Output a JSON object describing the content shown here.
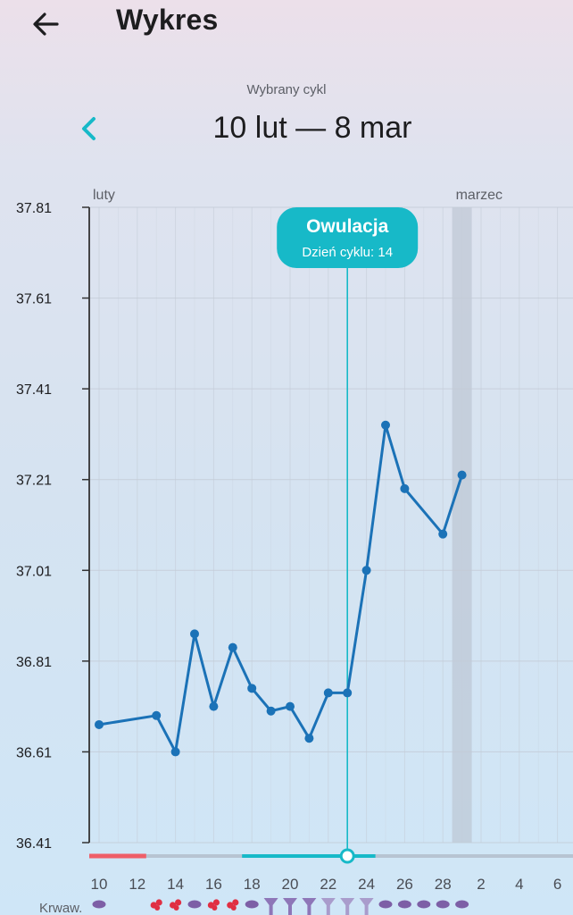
{
  "header": {
    "title": "Wykres",
    "back_icon": "arrow-left-icon"
  },
  "cycle": {
    "caption": "Wybrany cykl",
    "range": "10 lut — 8 mar",
    "prev_icon": "chevron-left-icon"
  },
  "colors": {
    "line": "#1b72b7",
    "ovulation": "#17b9c8",
    "period": "#ef5e68",
    "bleeding_icon": "#7d5fa6",
    "blood_drop": "#e02f43",
    "grid": "#c3cbd6",
    "axis": "#333333"
  },
  "chart_data": {
    "type": "line",
    "y_ticks": [
      "37.81",
      "37.61",
      "37.41",
      "37.21",
      "37.01",
      "36.81",
      "36.61",
      "36.41"
    ],
    "ylim": [
      36.41,
      37.81
    ],
    "month_labels": [
      {
        "label": "luty",
        "day_index": 0
      },
      {
        "label": "marzec",
        "day_index": 19
      }
    ],
    "day_labels": [
      {
        "label": "10",
        "day_index": 0
      },
      {
        "label": "12",
        "day_index": 2
      },
      {
        "label": "14",
        "day_index": 4
      },
      {
        "label": "16",
        "day_index": 6
      },
      {
        "label": "18",
        "day_index": 8
      },
      {
        "label": "20",
        "day_index": 10
      },
      {
        "label": "22",
        "day_index": 12
      },
      {
        "label": "24",
        "day_index": 14
      },
      {
        "label": "26",
        "day_index": 16
      },
      {
        "label": "28",
        "day_index": 18
      },
      {
        "label": "2",
        "day_index": 20
      },
      {
        "label": "4",
        "day_index": 22
      },
      {
        "label": "6",
        "day_index": 24
      }
    ],
    "highlight_day_index": 19,
    "points": [
      {
        "day_index": 0,
        "value": 36.67
      },
      {
        "day_index": 3,
        "value": 36.69
      },
      {
        "day_index": 4,
        "value": 36.61
      },
      {
        "day_index": 5,
        "value": 36.87
      },
      {
        "day_index": 6,
        "value": 36.71
      },
      {
        "day_index": 7,
        "value": 36.84
      },
      {
        "day_index": 8,
        "value": 36.75
      },
      {
        "day_index": 9,
        "value": 36.7
      },
      {
        "day_index": 10,
        "value": 36.71
      },
      {
        "day_index": 11,
        "value": 36.64
      },
      {
        "day_index": 12,
        "value": 36.74
      },
      {
        "day_index": 13,
        "value": 36.74
      },
      {
        "day_index": 14,
        "value": 37.01
      },
      {
        "day_index": 15,
        "value": 37.33
      },
      {
        "day_index": 16,
        "value": 37.19
      },
      {
        "day_index": 18,
        "value": 37.09
      },
      {
        "day_index": 19,
        "value": 37.22
      }
    ],
    "ovulation": {
      "day_index": 13,
      "title": "Owulacja",
      "subtitle": "Dzień cyklu: 14"
    },
    "period_days": [
      0,
      2
    ],
    "fertile_days": [
      8,
      14
    ],
    "bleeding_label": "Krwaw.",
    "bleeding_marks": [
      {
        "day_index": 0,
        "icon": "bleeding-drop-icon"
      },
      {
        "day_index": 3,
        "icon": "blood-drops-icon"
      },
      {
        "day_index": 4,
        "icon": "blood-drops-icon"
      },
      {
        "day_index": 5,
        "icon": "bleeding-drop-icon"
      },
      {
        "day_index": 6,
        "icon": "blood-drops-icon"
      },
      {
        "day_index": 7,
        "icon": "blood-drops-icon"
      },
      {
        "day_index": 8,
        "icon": "bleeding-drop-icon"
      },
      {
        "day_index": 9,
        "icon": "funnel-icon"
      },
      {
        "day_index": 10,
        "icon": "funnel-icon"
      },
      {
        "day_index": 11,
        "icon": "funnel-icon"
      },
      {
        "day_index": 12,
        "icon": "funnel-light-icon"
      },
      {
        "day_index": 13,
        "icon": "funnel-light-icon"
      },
      {
        "day_index": 14,
        "icon": "funnel-light-icon"
      },
      {
        "day_index": 15,
        "icon": "bleeding-drop-icon"
      },
      {
        "day_index": 16,
        "icon": "bleeding-drop-icon"
      },
      {
        "day_index": 17,
        "icon": "bleeding-drop-icon"
      },
      {
        "day_index": 18,
        "icon": "bleeding-drop-icon"
      },
      {
        "day_index": 19,
        "icon": "bleeding-drop-icon"
      }
    ]
  }
}
